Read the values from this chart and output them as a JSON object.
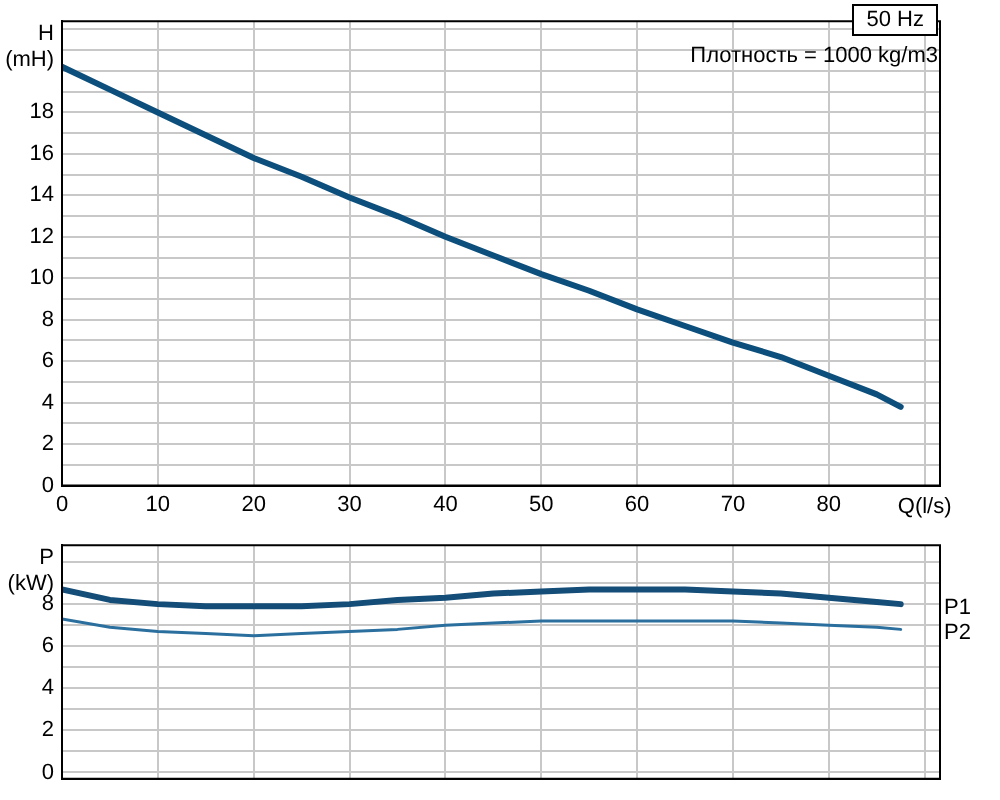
{
  "chart_data": [
    {
      "type": "line",
      "ylabel": "H (mH)",
      "xlabel": "Q(l/s)",
      "annotations": [
        "50 Hz",
        "Плотность = 1000 kg/m3"
      ],
      "x": [
        0,
        5,
        10,
        15,
        20,
        25,
        30,
        35,
        40,
        45,
        50,
        55,
        60,
        65,
        70,
        75,
        80,
        85,
        87.5
      ],
      "series": [
        {
          "color": "#0d4f7c",
          "values": [
            20.2,
            19.1,
            18.0,
            16.9,
            15.8,
            14.9,
            13.9,
            13.0,
            12.0,
            11.1,
            10.2,
            9.4,
            8.5,
            7.7,
            6.9,
            6.2,
            5.3,
            4.4,
            3.8
          ]
        }
      ],
      "xlim": [
        0,
        91.6
      ],
      "xticks": [
        0,
        10,
        20,
        30,
        40,
        50,
        60,
        70,
        80,
        {
          "value": 90,
          "label": null
        }
      ],
      "ylim": [
        0,
        22.4
      ],
      "yticks": [
        0,
        {
          "value": 1,
          "label": null
        },
        2,
        {
          "value": 3,
          "label": null
        },
        4,
        {
          "value": 5,
          "label": null
        },
        6,
        {
          "value": 7,
          "label": null
        },
        8,
        {
          "value": 9,
          "label": null
        },
        10,
        {
          "value": 11,
          "label": null
        },
        12,
        {
          "value": 13,
          "label": null
        },
        14,
        {
          "value": 15,
          "label": null
        },
        16,
        {
          "value": 17,
          "label": null
        },
        18,
        {
          "value": 19,
          "label": null
        },
        {
          "value": 20,
          "label": null
        },
        {
          "value": 21,
          "label": null
        },
        {
          "value": 22,
          "label": null
        }
      ],
      "grid": true,
      "legend": false,
      "marker": "none",
      "line_style": "solid"
    },
    {
      "type": "line",
      "ylabel": "P (kW)",
      "x": [
        0,
        5,
        10,
        15,
        20,
        25,
        30,
        35,
        40,
        45,
        50,
        55,
        60,
        65,
        70,
        75,
        80,
        85,
        87.5
      ],
      "series": [
        {
          "name": "P1",
          "color": "#134d78",
          "values": [
            8.7,
            8.2,
            8.0,
            7.9,
            7.9,
            7.9,
            8.0,
            8.2,
            8.3,
            8.5,
            8.6,
            8.7,
            8.7,
            8.7,
            8.6,
            8.5,
            8.3,
            8.1,
            8.0
          ]
        },
        {
          "name": "P2",
          "color": "#2a6f9e",
          "values": [
            7.3,
            6.9,
            6.7,
            6.6,
            6.5,
            6.6,
            6.7,
            6.8,
            7.0,
            7.1,
            7.2,
            7.2,
            7.2,
            7.2,
            7.2,
            7.1,
            7.0,
            6.9,
            6.8
          ]
        }
      ],
      "xlim": [
        0,
        91.6
      ],
      "xticks": [
        0,
        10,
        20,
        30,
        40,
        50,
        60,
        70,
        80,
        90
      ],
      "ylim": [
        -0.3,
        10.8
      ],
      "yticks": [
        0,
        {
          "value": 1,
          "label": null
        },
        2,
        {
          "value": 3,
          "label": null
        },
        4,
        {
          "value": 5,
          "label": null
        },
        6,
        {
          "value": 7,
          "label": null
        },
        8,
        {
          "value": 9,
          "label": null
        },
        {
          "value": 10,
          "label": null
        }
      ],
      "tick_labels": "y",
      "grid": true,
      "legend": false,
      "marker": "none",
      "line_style": "solid"
    }
  ]
}
